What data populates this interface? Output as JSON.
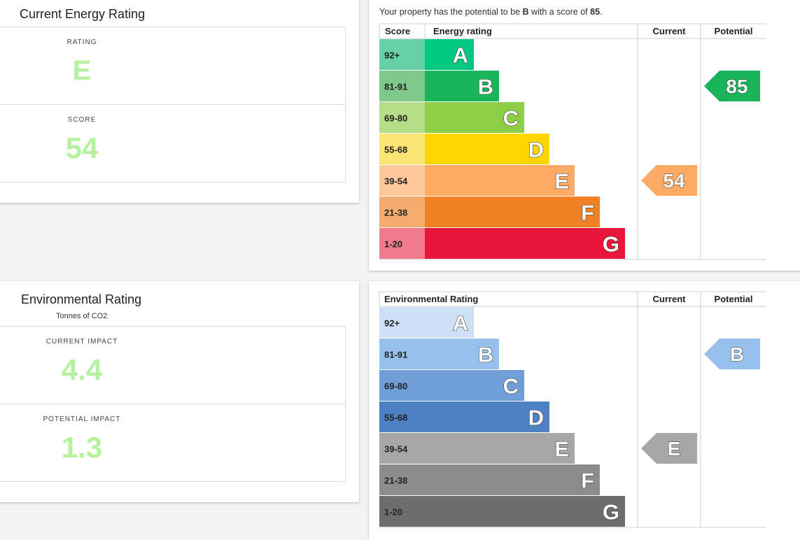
{
  "energy_card": {
    "title": "Current Energy Rating",
    "rating_label": "RATING",
    "rating_value": "E",
    "score_label": "SCORE",
    "score_value": "54"
  },
  "environment_card": {
    "title": "Environmental Rating",
    "subtitle": "Tonnes of CO2",
    "current_label": "CURRENT IMPACT",
    "current_value": "4.4",
    "potential_label": "POTENTIAL IMPACT",
    "potential_value": "1.3"
  },
  "energy_chart_panel": {
    "intro_prefix": "Your property has the potential to be ",
    "intro_rating": "B",
    "intro_middle": " with a score of ",
    "intro_score": "85",
    "intro_suffix": "."
  },
  "chart_data": [
    {
      "type": "table",
      "headers": {
        "score": "Score",
        "rating": "Energy rating",
        "current": "Current",
        "potential": "Potential"
      },
      "bands": [
        {
          "range": "92+",
          "letter": "A",
          "color": "#00c781",
          "score_color": "#66cfa3"
        },
        {
          "range": "81-91",
          "letter": "B",
          "color": "#19b459",
          "score_color": "#7cc98a"
        },
        {
          "range": "69-80",
          "letter": "C",
          "color": "#8dce46",
          "score_color": "#b6dd87"
        },
        {
          "range": "55-68",
          "letter": "D",
          "color": "#ffd500",
          "score_color": "#fce474"
        },
        {
          "range": "39-54",
          "letter": "E",
          "color": "#fcaa65",
          "score_color": "#fdc79a"
        },
        {
          "range": "21-38",
          "letter": "F",
          "color": "#ef8023",
          "score_color": "#f4ac6e"
        },
        {
          "range": "1-20",
          "letter": "G",
          "color": "#e9153b",
          "score_color": "#f07a8d"
        }
      ],
      "current": {
        "band": "E",
        "label": "54",
        "color": "#fcaa65"
      },
      "potential": {
        "band": "B",
        "label": "85",
        "color": "#19b459"
      }
    },
    {
      "type": "table",
      "headers": {
        "rating": "Environmental Rating",
        "current": "Current",
        "potential": "Potential"
      },
      "bands": [
        {
          "range": "92+",
          "letter": "A",
          "color": "#cde0f5"
        },
        {
          "range": "81-91",
          "letter": "B",
          "color": "#98c0ec"
        },
        {
          "range": "69-80",
          "letter": "C",
          "color": "#6f9fd6"
        },
        {
          "range": "55-68",
          "letter": "D",
          "color": "#4e81c3"
        },
        {
          "range": "39-54",
          "letter": "E",
          "color": "#a7a7a7"
        },
        {
          "range": "21-38",
          "letter": "F",
          "color": "#8c8c8c"
        },
        {
          "range": "1-20",
          "letter": "G",
          "color": "#6d6d6d"
        }
      ],
      "current": {
        "band": "E",
        "label": "E",
        "color": "#a7a7a7"
      },
      "potential": {
        "band": "B",
        "label": "B",
        "color": "#98c0ec"
      }
    }
  ]
}
